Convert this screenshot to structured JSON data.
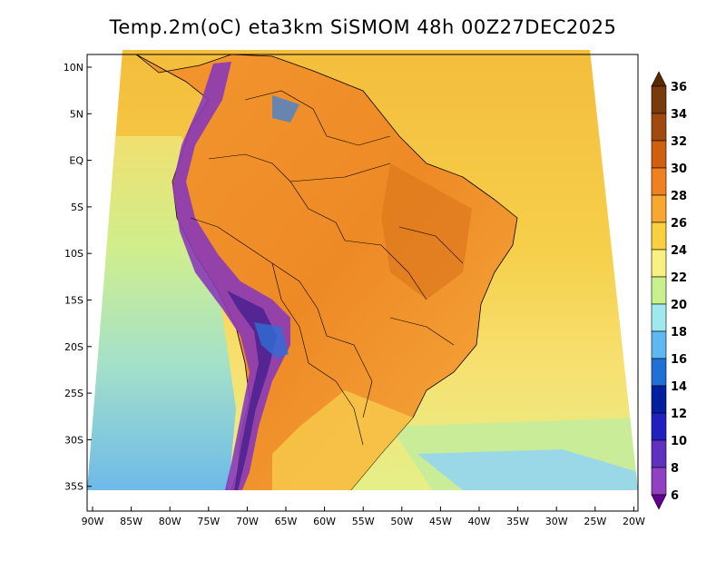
{
  "title": "Temp.2m(oC) eta3km SiSMOM 48h 00Z27DEC2025",
  "lat_labels": [
    "10N",
    "5N",
    "EQ",
    "5S",
    "10S",
    "15S",
    "20S",
    "25S",
    "30S",
    "35S"
  ],
  "lon_labels": [
    "90W",
    "85W",
    "80W",
    "75W",
    "70W",
    "65W",
    "60W",
    "55W",
    "50W",
    "45W",
    "40W",
    "35W",
    "30W",
    "25W",
    "20W"
  ],
  "colorbar": {
    "labels": [
      "36",
      "34",
      "32",
      "30",
      "28",
      "26",
      "24",
      "22",
      "20",
      "18",
      "16",
      "14",
      "12",
      "10",
      "8",
      "6"
    ],
    "colors": [
      "#5a2a00",
      "#7a3a10",
      "#a04a10",
      "#d06010",
      "#f08020",
      "#f8a830",
      "#f8d040",
      "#f8f080",
      "#c8f08c",
      "#a0e8f0",
      "#60b8f0",
      "#2070d8",
      "#0020a0",
      "#2020c0",
      "#6030c0",
      "#9040c0",
      "#600090"
    ]
  },
  "fields": {
    "ocean_warm": "#f5c442",
    "ocean_cool": "#dcf28e",
    "ocean_cold": "#7cc6f2",
    "land_hot": "#ec8a2a",
    "land_warm": "#f6a63c",
    "andes": "#8a3ab8",
    "andes_deep": "#3a1a8a"
  }
}
